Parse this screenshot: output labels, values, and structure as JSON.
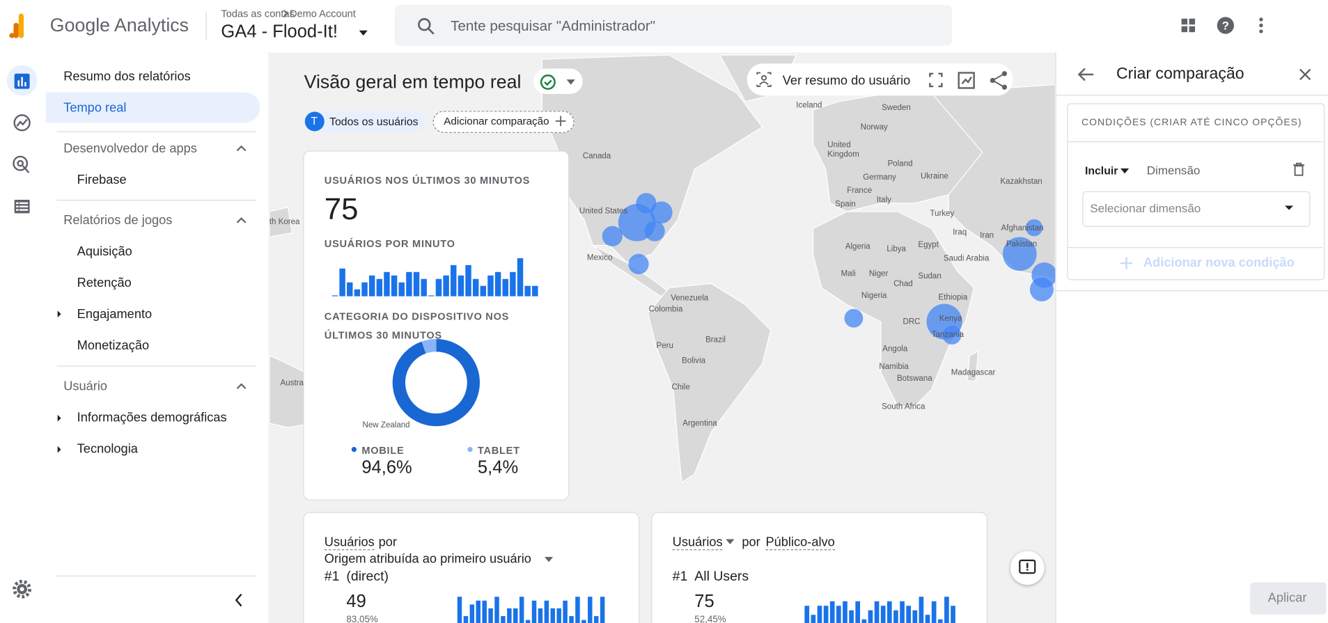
{
  "header": {
    "product": "Google Analytics",
    "breadcrumb": [
      "Todas as contas",
      "Demo Account"
    ],
    "property": "GA4 - Flood-It!",
    "search_placeholder": "Tente pesquisar \"Administrador\""
  },
  "nav": {
    "top": [
      "Resumo dos relatórios",
      "Tempo real"
    ],
    "sections": [
      {
        "title": "Desenvolvedor de apps",
        "items": [
          "Firebase"
        ]
      },
      {
        "title": "Relatórios de jogos",
        "items": [
          "Aquisição",
          "Retenção",
          "Engajamento",
          "Monetização"
        ]
      },
      {
        "title": "Usuário",
        "items": [
          "Informações demográficas",
          "Tecnologia"
        ]
      }
    ]
  },
  "realtime": {
    "title": "Visão geral em tempo real",
    "user_snapshot": "Ver resumo do usuário",
    "avatar": "T",
    "all_users": "Todos os usuários",
    "add_comparison": "Adicionar comparação",
    "map_labels": [
      "Iceland",
      "Sweden",
      "Norway",
      "Canada",
      "United Kingdom",
      "Poland",
      "Germany",
      "Ukraine",
      "France",
      "Italy",
      "Kazakhstan",
      "Spain",
      "Turkey",
      "Iraq",
      "Iran",
      "Afghanistan",
      "Pakistan",
      "United States",
      "Mexico",
      "Algeria",
      "Libya",
      "Egypt",
      "Saudi Arabia",
      "Mali",
      "Niger",
      "Chad",
      "Sudan",
      "Nigeria",
      "Ethiopia",
      "Venezuela",
      "Colombia",
      "Kenya",
      "DRC",
      "Tanzania",
      "Brazil",
      "Peru",
      "Bolivia",
      "Angola",
      "Madagascar",
      "Namibia",
      "Botswana",
      "Chile",
      "Argentina",
      "South Africa",
      "Austra",
      "th Korea",
      "New Zealand"
    ]
  },
  "card": {
    "users_30min_label": "USUÁRIOS NOS ÚLTIMOS 30 MINUTOS",
    "users_30min": 75,
    "per_minute_label": "USUÁRIOS POR MINUTO",
    "per_minute": [
      0,
      8,
      4,
      2,
      4,
      6,
      5,
      7,
      6,
      4,
      7,
      7,
      5,
      0,
      5,
      6,
      9,
      6,
      9,
      5,
      3,
      6,
      7,
      5,
      7,
      11,
      3,
      3
    ],
    "device_label": "CATEGORIA DO DISPOSITIVO NOS ÚLTIMOS 30 MINUTOS",
    "device": {
      "categories": [
        "MOBILE",
        "TABLET"
      ],
      "values": [
        94.6,
        5.4
      ],
      "value_labels": [
        "94,6%",
        "5,4%"
      ],
      "colors": [
        "#1967d2",
        "#8ab4f8"
      ]
    }
  },
  "bottom_cards": [
    {
      "metric": "Usuários",
      "by": "por",
      "dimension": "Origem atribuída ao primeiro usuário",
      "rank": "#1",
      "top_item": "(direct)",
      "top_value": 49,
      "top_share": "83,05%",
      "bars": [
        7,
        2,
        5,
        6,
        6,
        4,
        7,
        2,
        4,
        4,
        7,
        1,
        6,
        4,
        6,
        4,
        4,
        6,
        2,
        7,
        1,
        7,
        2,
        7
      ]
    },
    {
      "metric": "Usuários",
      "by": "por",
      "dimension": "Público-alvo",
      "rank": "#1",
      "top_item": "All Users",
      "top_value": 75,
      "top_share": "52,45%",
      "bars": [
        4,
        2,
        4,
        4,
        5,
        4,
        5,
        3,
        5,
        1,
        3,
        5,
        4,
        5,
        3,
        5,
        4,
        3,
        6,
        2,
        5,
        1,
        6,
        4
      ]
    }
  ],
  "comparison": {
    "title": "Criar comparação",
    "conditions_label": "CONDIÇÕES (CRIAR ATÉ CINCO OPÇÕES)",
    "include": "Incluir",
    "dimension": "Dimensão",
    "select_placeholder": "Selecionar dimensão",
    "add_condition": "Adicionar nova condição",
    "apply": "Aplicar"
  }
}
